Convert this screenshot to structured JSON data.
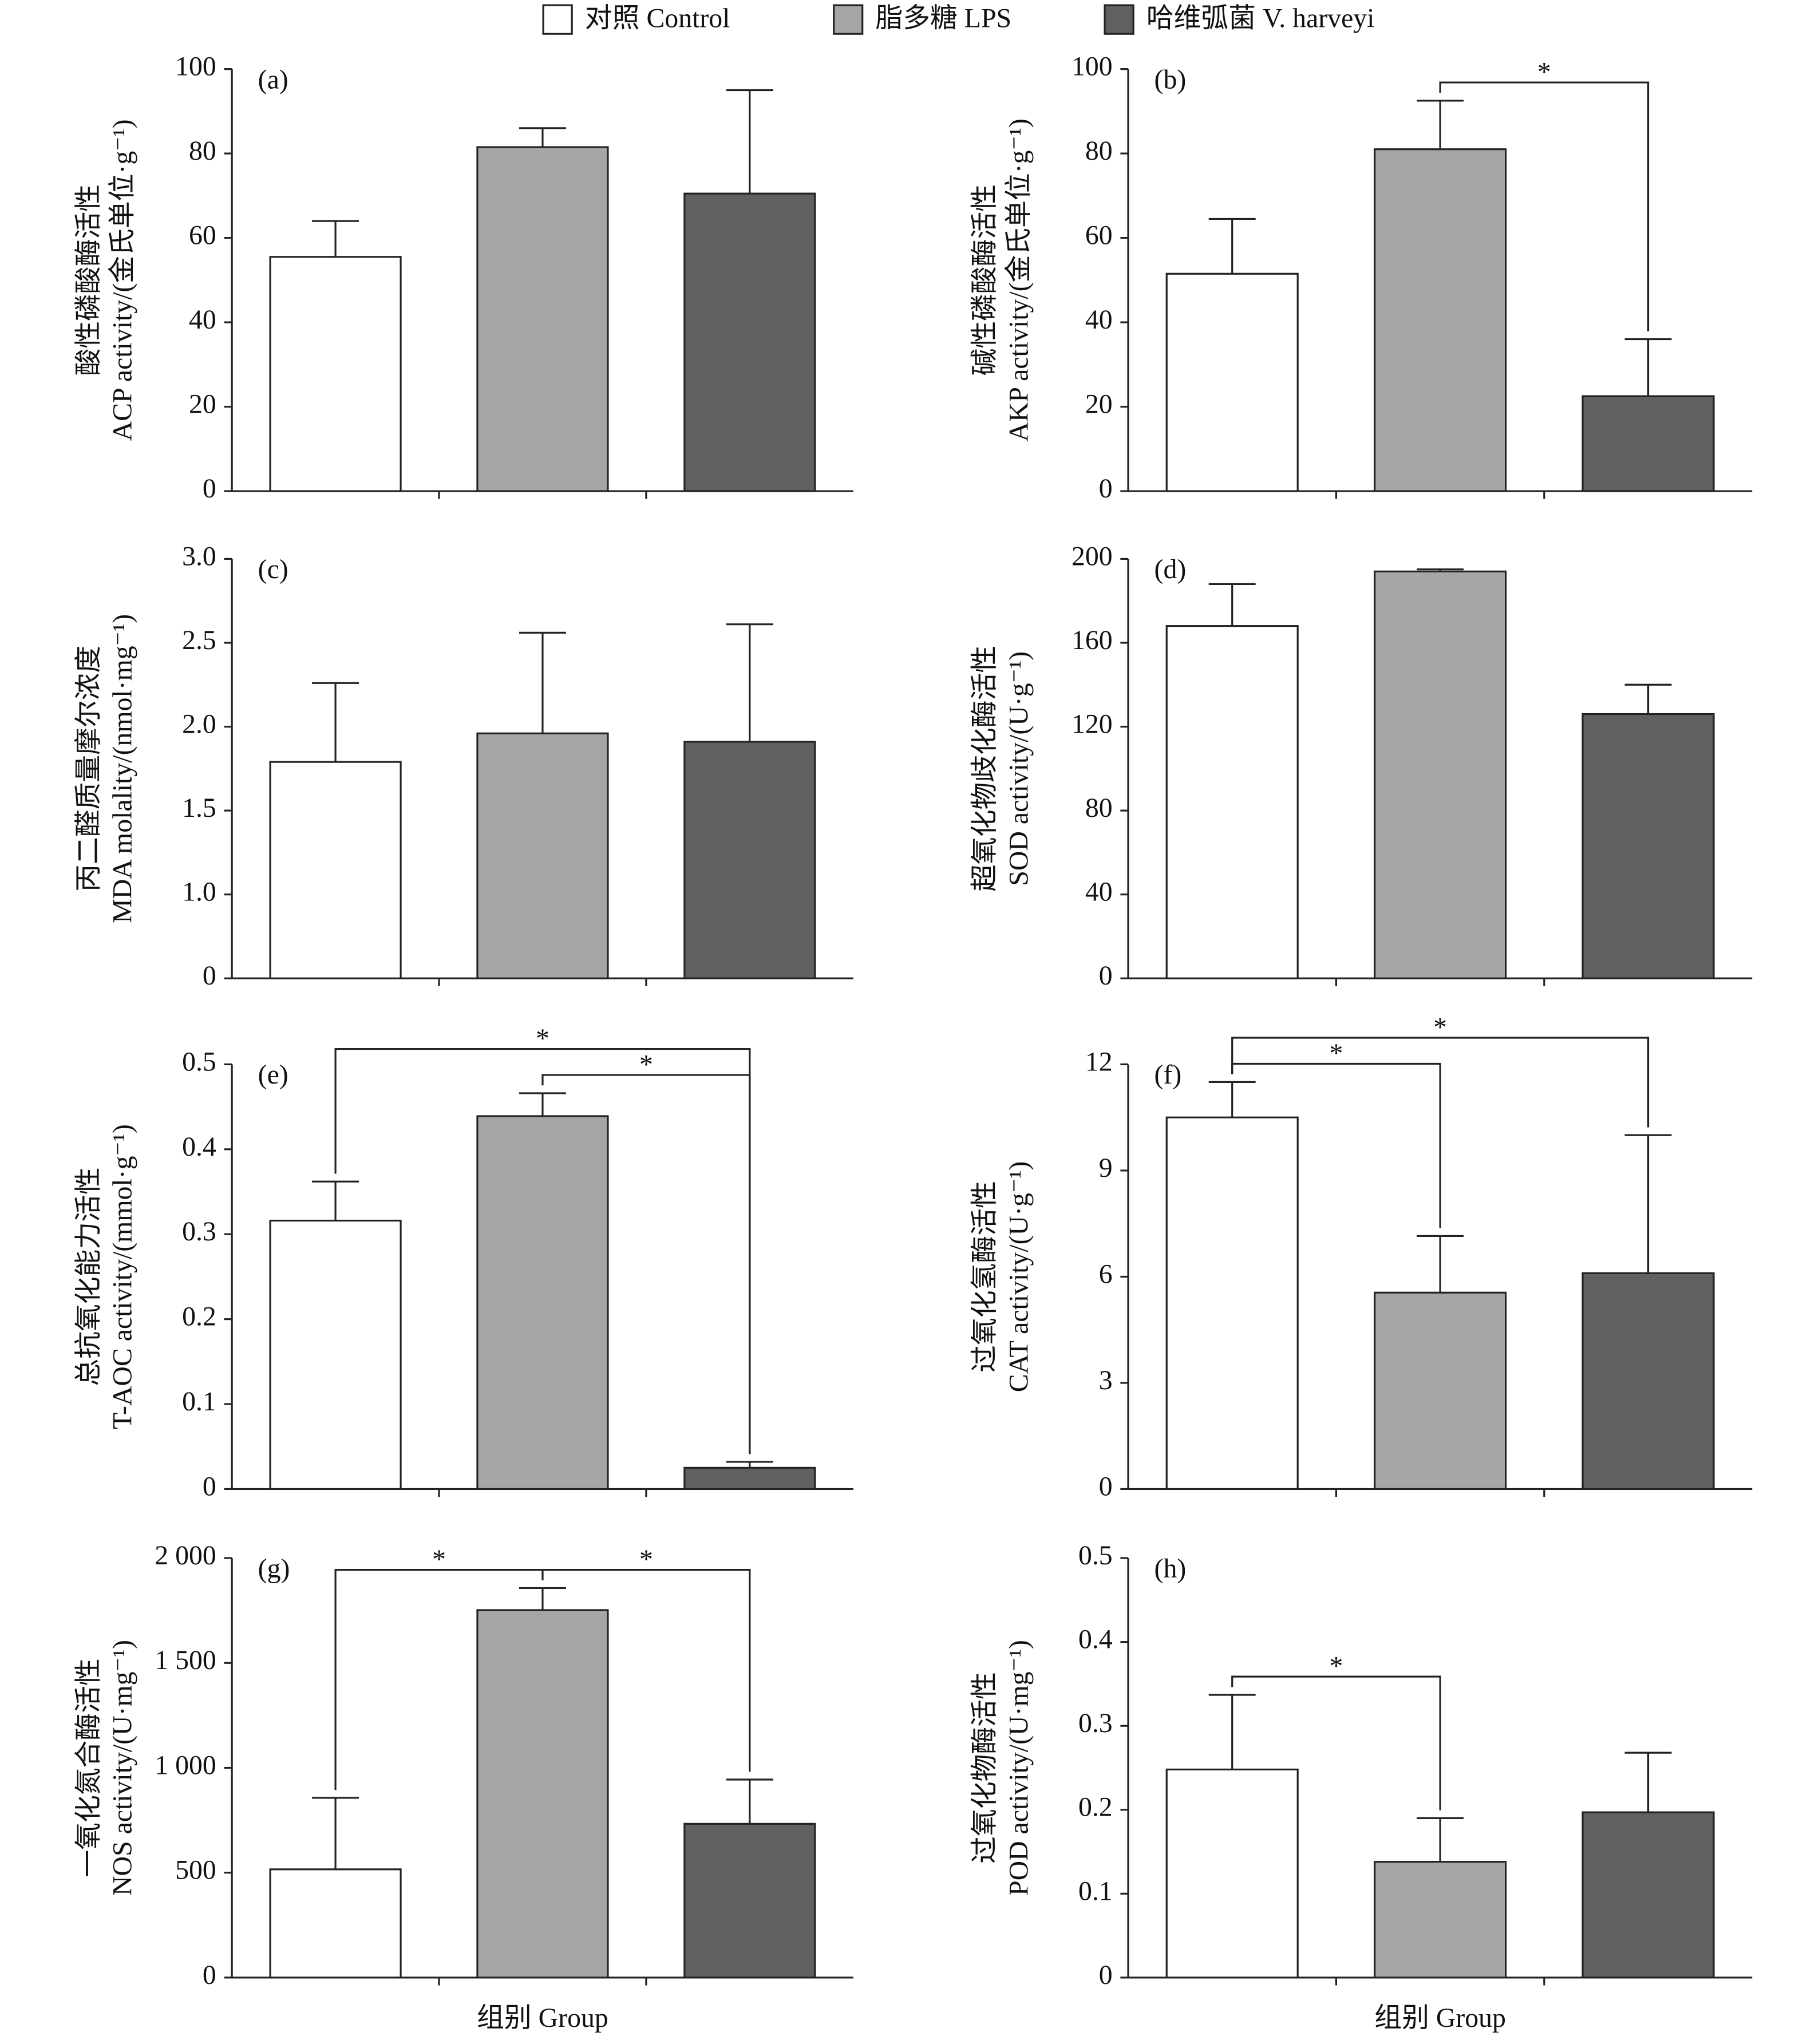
{
  "legend": {
    "entries": [
      {
        "name": "对照 Control",
        "color": "#ffffff"
      },
      {
        "name": "脂多糖 LPS",
        "color": "#a6a6a6"
      },
      {
        "name": "哈维弧菌 V. harveyi",
        "color": "#606060"
      }
    ]
  },
  "chart_data": [
    {
      "type": "bar",
      "panel": "(a)",
      "ylabel": [
        "酸性磷酸酶活性",
        "ACP activity/(金氏单位·g⁻¹)"
      ],
      "categories": [
        null,
        null,
        null
      ],
      "values": [
        55.5,
        81.5,
        70.5
      ],
      "errors": [
        8.5,
        4.5,
        24.5
      ],
      "ylim": [
        0,
        100
      ],
      "yticks": [
        0,
        20,
        40,
        60,
        80,
        100
      ],
      "annotations": []
    },
    {
      "type": "bar",
      "panel": "(b)",
      "ylabel": [
        "碱性磷酸酶活性",
        "AKP activity/(金氏单位·g⁻¹)"
      ],
      "categories": [
        null,
        null,
        null
      ],
      "values": [
        51.5,
        81,
        22.5
      ],
      "errors": [
        13,
        11.5,
        13.5
      ],
      "ylim": [
        0,
        100
      ],
      "yticks": [
        0,
        20,
        40,
        60,
        80,
        100
      ],
      "annotations": [
        {
          "from": 1,
          "to": 2,
          "label": "*"
        }
      ]
    },
    {
      "type": "bar",
      "panel": "(c)",
      "ylabel": [
        "丙二醛质量摩尔浓度",
        "MDA molality/(nmol·mg⁻¹)"
      ],
      "categories": [
        null,
        null,
        null
      ],
      "values": [
        1.79,
        1.96,
        1.91
      ],
      "errors": [
        0.47,
        0.6,
        0.7
      ],
      "ylim": [
        0,
        3.0
      ],
      "ybreak": [
        0,
        1.0
      ],
      "yticks": [
        0,
        {
          "value": 1.0,
          "label": "1.0"
        },
        1.5,
        {
          "value": 2.0,
          "label": "2.0"
        },
        2.5,
        {
          "value": 3.0,
          "label": "3.0"
        }
      ],
      "annotations": []
    },
    {
      "type": "bar",
      "panel": "(d)",
      "ylabel": [
        "超氧化物歧化酶活性",
        "SOD activity/(U·g⁻¹)"
      ],
      "categories": [
        null,
        null,
        null
      ],
      "values": [
        168,
        194,
        126
      ],
      "errors": [
        20,
        1,
        14
      ],
      "ylim": [
        0,
        200
      ],
      "yticks": [
        0,
        40,
        80,
        120,
        160,
        200
      ],
      "annotations": []
    },
    {
      "type": "bar",
      "panel": "(e)",
      "ylabel": [
        "总抗氧化能力活性",
        "T-AOC activity/(mmol·g⁻¹)"
      ],
      "categories": [
        null,
        null,
        null
      ],
      "values": [
        0.316,
        0.439,
        0.025
      ],
      "errors": [
        0.046,
        0.027,
        0.007
      ],
      "ylim": [
        0,
        0.5
      ],
      "yticks": [
        0,
        0.1,
        0.2,
        0.3,
        0.4,
        0.5
      ],
      "annotations": [
        {
          "from": 0,
          "to": 2,
          "label": "*"
        },
        {
          "from": 1,
          "to": 2,
          "label": "*"
        }
      ]
    },
    {
      "type": "bar",
      "panel": "(f)",
      "ylabel": [
        "过氧化氢酶活性",
        "CAT activity/(U·g⁻¹)"
      ],
      "categories": [
        null,
        null,
        null
      ],
      "values": [
        10.5,
        5.55,
        6.1
      ],
      "errors": [
        1.0,
        1.6,
        3.9
      ],
      "ylim": [
        0,
        12
      ],
      "yticks": [
        0,
        3,
        6,
        9,
        12
      ],
      "annotations": [
        {
          "from": 0,
          "to": 1,
          "label": "*"
        },
        {
          "from": 0,
          "to": 2,
          "label": "*"
        }
      ]
    },
    {
      "type": "bar",
      "panel": "(g)",
      "ylabel": [
        "一氧化氮合酶活性",
        "NOS activity/(U·mg⁻¹)"
      ],
      "categories": [
        null,
        null,
        null
      ],
      "values": [
        516,
        1752,
        733
      ],
      "errors": [
        341,
        105,
        211
      ],
      "ylim": [
        0,
        2000
      ],
      "yticks": [
        0,
        500,
        {
          "value": 1000,
          "label": "1 000"
        },
        {
          "value": 1500,
          "label": "1 500"
        },
        {
          "value": 2000,
          "label": "2 000"
        }
      ],
      "annotations": [
        {
          "from": 0,
          "to": 1,
          "label": "*"
        },
        {
          "from": 1,
          "to": 2,
          "label": "*"
        }
      ],
      "xlabel": "组别 Group"
    },
    {
      "type": "bar",
      "panel": "(h)",
      "ylabel": [
        "过氧化物酶活性",
        "POD activity/(U·mg⁻¹)"
      ],
      "categories": [
        null,
        null,
        null
      ],
      "values": [
        0.248,
        0.138,
        0.197
      ],
      "errors": [
        0.089,
        0.052,
        0.071
      ],
      "ylim": [
        0,
        0.5
      ],
      "yticks": [
        0,
        0.1,
        0.2,
        0.3,
        0.4,
        0.5
      ],
      "annotations": [
        {
          "from": 0,
          "to": 1,
          "label": "*"
        }
      ],
      "xlabel": "组别 Group"
    }
  ]
}
